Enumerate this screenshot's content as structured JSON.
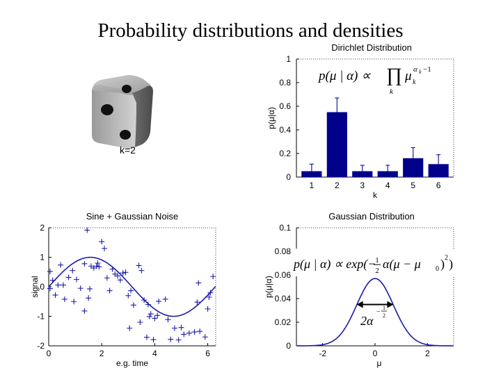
{
  "slide": {
    "title": "Probability distributions and densities"
  },
  "die": {
    "label": "k=2"
  },
  "colors": {
    "series": "#1a1aa6",
    "bar": "#00008b",
    "error": "#1a1aa6",
    "axis": "#000000"
  },
  "chart_data": [
    {
      "type": "bar",
      "title": "Dirichlet Distribution",
      "xlabel": "k",
      "ylabel": "p(μ|α)",
      "categories": [
        "1",
        "2",
        "3",
        "4",
        "5",
        "6"
      ],
      "values": [
        0.05,
        0.55,
        0.05,
        0.05,
        0.16,
        0.11
      ],
      "error_high": [
        0.11,
        0.67,
        0.1,
        0.1,
        0.25,
        0.19
      ],
      "ylim": [
        0,
        1
      ],
      "yticks": [
        "0",
        "0.2",
        "0.4",
        "0.6",
        "0.8",
        "1"
      ],
      "formula": {
        "lhs": "p(μ | α) ∝ ",
        "prod": "∏",
        "sub": "k",
        "var": "μ",
        "var_sub": "k",
        "exp": "α",
        "exp_sub": "k",
        "exp_tail": "−1"
      }
    },
    {
      "type": "scatter",
      "title": "Sine + Gaussian Noise",
      "xlabel": "e.g. time",
      "ylabel": "signal",
      "xlim": [
        0,
        6.3
      ],
      "ylim": [
        -2,
        2
      ],
      "xticks": [
        "0",
        "2",
        "4",
        "6"
      ],
      "yticks": [
        "2",
        "1",
        "0",
        "-1",
        "-2"
      ],
      "curve": "sin(x)",
      "points": [
        [
          0.05,
          0.52
        ],
        [
          0.05,
          -0.06
        ],
        [
          0.15,
          0.22
        ],
        [
          0.25,
          -0.28
        ],
        [
          0.35,
          0.06
        ],
        [
          0.45,
          0.74
        ],
        [
          0.55,
          0.06
        ],
        [
          0.6,
          -0.42
        ],
        [
          0.75,
          0.32
        ],
        [
          0.9,
          0.55
        ],
        [
          0.95,
          -0.5
        ],
        [
          1.05,
          0.25
        ],
        [
          1.2,
          -0.05
        ],
        [
          1.35,
          0.78
        ],
        [
          1.35,
          -0.82
        ],
        [
          1.45,
          1.92
        ],
        [
          1.5,
          -0.38
        ],
        [
          1.55,
          -0.07
        ],
        [
          1.6,
          0.7
        ],
        [
          1.7,
          0.64
        ],
        [
          1.8,
          0.7
        ],
        [
          1.85,
          0.8
        ],
        [
          1.9,
          0.68
        ],
        [
          2.0,
          1.53
        ],
        [
          2.1,
          1.3
        ],
        [
          2.2,
          0.3
        ],
        [
          2.3,
          -0.13
        ],
        [
          2.4,
          0.6
        ],
        [
          2.5,
          0.43
        ],
        [
          2.6,
          0.37
        ],
        [
          2.7,
          0.23
        ],
        [
          2.8,
          0.47
        ],
        [
          2.9,
          0.49
        ],
        [
          3.0,
          -0.3
        ],
        [
          3.05,
          -1.4
        ],
        [
          3.1,
          -0.13
        ],
        [
          3.2,
          -0.62
        ],
        [
          3.4,
          0.72
        ],
        [
          3.45,
          -1.2
        ],
        [
          3.5,
          0.55
        ],
        [
          3.6,
          -0.45
        ],
        [
          3.7,
          -1.71
        ],
        [
          3.75,
          -0.6
        ],
        [
          3.8,
          -1.01
        ],
        [
          3.85,
          -0.92
        ],
        [
          3.95,
          -1.79
        ],
        [
          4.0,
          -1.07
        ],
        [
          4.1,
          -0.97
        ],
        [
          4.15,
          -0.49
        ],
        [
          4.4,
          -0.42
        ],
        [
          4.5,
          -1.11
        ],
        [
          4.6,
          -1.78
        ],
        [
          4.75,
          -1.4
        ],
        [
          4.9,
          -1.8
        ],
        [
          5.0,
          -1.38
        ],
        [
          5.1,
          -1.61
        ],
        [
          5.3,
          -1.57
        ],
        [
          5.5,
          -1.53
        ],
        [
          5.6,
          -0.52
        ],
        [
          5.65,
          0.13
        ],
        [
          5.7,
          -1.51
        ],
        [
          5.9,
          -1.7
        ],
        [
          6.0,
          -0.75
        ],
        [
          6.05,
          -0.35
        ],
        [
          6.1,
          -0.2
        ],
        [
          6.2,
          0.35
        ]
      ]
    },
    {
      "type": "line",
      "title": "Gaussian Distribution",
      "xlabel": "μ",
      "ylabel": "p(μ|α)",
      "xlim": [
        -3,
        3
      ],
      "ylim": [
        0,
        0.1
      ],
      "xticks": [
        "-2",
        "0",
        "2"
      ],
      "yticks": [
        "0.1",
        "0.08",
        "0.06",
        "0.04",
        "0.02",
        "0"
      ],
      "curve": "gaussian",
      "mean": 0,
      "sigma": 0.7,
      "peak": 0.057,
      "arrow_range": [
        -0.7,
        0.7
      ],
      "arrow_value": 0.035,
      "formula": {
        "lhs": "p(μ | α) ∝ exp(−",
        "half_num": "1",
        "half_den": "2",
        "mid": "α(μ − μ",
        "mid_sub": "0",
        "tail": ")",
        "sq": "2",
        "close": ")"
      },
      "width_label": {
        "base": "2α",
        "exp_sign": "−",
        "exp_num": "1",
        "exp_den": "2"
      }
    }
  ]
}
